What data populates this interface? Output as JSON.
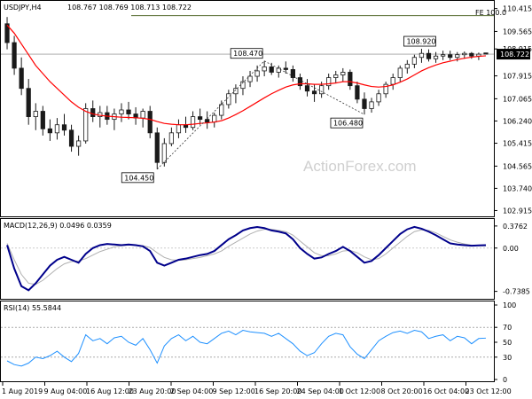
{
  "colors": {
    "candle": "#1a1a1a",
    "ma": "#ff0000",
    "macd": "#00008b",
    "signal": "#b0b0b0",
    "rsi": "#1e90ff",
    "level_line": "#a0a0a0",
    "frame": "#000000"
  },
  "header": {
    "symbol": "USDJPY,H4",
    "ohlc": "108.767 108.769 108.713 108.722"
  },
  "watermark": "ActionForex.com",
  "fib_label": "FE 100.0",
  "current_price_label": "108.722",
  "chart_data": [
    {
      "type": "candlestick",
      "series": [
        {
          "name": "",
          "values": [
            [
              109.85,
              110.1,
              108.9,
              109.15
            ],
            [
              109.15,
              109.4,
              107.95,
              108.2
            ],
            [
              108.2,
              108.6,
              107.2,
              107.45
            ],
            [
              107.45,
              107.8,
              106.1,
              106.4
            ],
            [
              106.4,
              106.9,
              105.9,
              106.6
            ],
            [
              106.6,
              106.8,
              105.7,
              105.95
            ],
            [
              105.95,
              106.3,
              105.5,
              105.8
            ],
            [
              105.8,
              106.35,
              105.55,
              106.1
            ],
            [
              106.1,
              106.5,
              105.7,
              105.9
            ],
            [
              105.9,
              106.1,
              105.1,
              105.3
            ],
            [
              105.3,
              105.7,
              104.95,
              105.5
            ],
            [
              105.5,
              106.9,
              105.4,
              106.7
            ],
            [
              106.7,
              107.0,
              106.2,
              106.4
            ],
            [
              106.4,
              106.8,
              106.0,
              106.55
            ],
            [
              106.55,
              106.8,
              106.1,
              106.3
            ],
            [
              106.3,
              106.7,
              105.9,
              106.5
            ],
            [
              106.5,
              106.9,
              106.2,
              106.65
            ],
            [
              106.65,
              106.95,
              106.3,
              106.5
            ],
            [
              106.5,
              106.75,
              106.1,
              106.35
            ],
            [
              106.35,
              106.7,
              106.0,
              106.6
            ],
            [
              106.6,
              106.8,
              105.6,
              105.8
            ],
            [
              105.8,
              106.0,
              104.45,
              104.7
            ],
            [
              104.7,
              105.6,
              104.55,
              105.4
            ],
            [
              105.4,
              106.0,
              105.3,
              105.8
            ],
            [
              105.8,
              106.3,
              105.6,
              106.1
            ],
            [
              106.1,
              106.4,
              105.8,
              106.0
            ],
            [
              106.0,
              106.6,
              105.9,
              106.4
            ],
            [
              106.4,
              106.7,
              106.1,
              106.3
            ],
            [
              106.3,
              106.6,
              105.95,
              106.2
            ],
            [
              106.2,
              106.55,
              106.0,
              106.45
            ],
            [
              106.45,
              107.0,
              106.3,
              106.85
            ],
            [
              106.85,
              107.4,
              106.7,
              107.25
            ],
            [
              107.25,
              107.6,
              106.9,
              107.45
            ],
            [
              107.45,
              107.9,
              107.2,
              107.7
            ],
            [
              107.7,
              108.1,
              107.5,
              107.9
            ],
            [
              107.9,
              108.3,
              107.7,
              108.1
            ],
            [
              108.1,
              108.47,
              107.9,
              108.25
            ],
            [
              108.25,
              108.4,
              107.95,
              108.05
            ],
            [
              108.05,
              108.3,
              107.85,
              108.2
            ],
            [
              108.2,
              108.45,
              108.0,
              108.15
            ],
            [
              108.15,
              108.3,
              107.7,
              107.85
            ],
            [
              107.85,
              108.0,
              107.4,
              107.55
            ],
            [
              107.55,
              107.8,
              107.15,
              107.35
            ],
            [
              107.35,
              107.6,
              106.95,
              107.25
            ],
            [
              107.25,
              107.7,
              107.1,
              107.55
            ],
            [
              107.55,
              108.0,
              107.4,
              107.85
            ],
            [
              107.85,
              108.1,
              107.65,
              107.95
            ],
            [
              107.95,
              108.2,
              107.7,
              108.05
            ],
            [
              108.05,
              108.15,
              107.4,
              107.55
            ],
            [
              107.55,
              107.7,
              106.9,
              107.05
            ],
            [
              107.05,
              107.3,
              106.48,
              106.7
            ],
            [
              106.7,
              107.1,
              106.55,
              106.95
            ],
            [
              106.95,
              107.4,
              106.8,
              107.25
            ],
            [
              107.25,
              107.7,
              107.1,
              107.6
            ],
            [
              107.6,
              108.0,
              107.4,
              107.85
            ],
            [
              107.85,
              108.3,
              107.7,
              108.2
            ],
            [
              108.2,
              108.5,
              108.0,
              108.35
            ],
            [
              108.35,
              108.7,
              108.2,
              108.6
            ],
            [
              108.6,
              108.92,
              108.4,
              108.75
            ],
            [
              108.75,
              108.9,
              108.45,
              108.55
            ],
            [
              108.55,
              108.8,
              108.4,
              108.65
            ],
            [
              108.65,
              108.85,
              108.5,
              108.7
            ],
            [
              108.7,
              108.85,
              108.5,
              108.6
            ],
            [
              108.6,
              108.8,
              108.45,
              108.7
            ],
            [
              108.7,
              108.82,
              108.55,
              108.75
            ],
            [
              108.75,
              108.8,
              108.55,
              108.65
            ],
            [
              108.65,
              108.78,
              108.5,
              108.72
            ],
            [
              108.767,
              108.769,
              108.713,
              108.722
            ]
          ]
        },
        {
          "name": "",
          "values": [
            109.8,
            109.5,
            109.1,
            108.7,
            108.3,
            108.0,
            107.7,
            107.45,
            107.2,
            106.95,
            106.75,
            106.6,
            106.5,
            106.45,
            106.42,
            106.4,
            106.38,
            106.37,
            106.36,
            106.34,
            106.3,
            106.22,
            106.15,
            106.12,
            106.1,
            106.1,
            106.12,
            106.15,
            106.17,
            106.2,
            106.25,
            106.35,
            106.48,
            106.62,
            106.78,
            106.94,
            107.1,
            107.25,
            107.38,
            107.5,
            107.58,
            107.62,
            107.62,
            107.6,
            107.6,
            107.62,
            107.65,
            107.7,
            107.7,
            107.65,
            107.58,
            107.52,
            107.5,
            107.52,
            107.58,
            107.68,
            107.8,
            107.95,
            108.1,
            108.22,
            108.32,
            108.4,
            108.46,
            108.52,
            108.57,
            108.61,
            108.64,
            108.66
          ]
        }
      ],
      "yticks": [
        "110.415",
        "109.565",
        "108.915",
        "107.915",
        "107.065",
        "106.240",
        "105.415",
        "104.565",
        "103.740",
        "102.915"
      ],
      "ylim": [
        102.7,
        110.6
      ],
      "annotations": [
        {
          "label": "108.470",
          "value": 108.47
        },
        {
          "label": "104.450",
          "value": 104.45
        },
        {
          "label": "106.480",
          "value": 106.48
        },
        {
          "label": "108.920",
          "value": 108.92
        }
      ],
      "horizontal_levels": [
        110.15,
        108.722
      ]
    },
    {
      "type": "line",
      "title": "MACD(12,26,9) 0.0496 0.0359",
      "series": [
        {
          "name": "",
          "values": [
            0.05,
            -0.35,
            -0.65,
            -0.72,
            -0.6,
            -0.45,
            -0.3,
            -0.2,
            -0.15,
            -0.2,
            -0.25,
            -0.1,
            0.0,
            0.05,
            0.07,
            0.06,
            0.05,
            0.06,
            0.05,
            0.03,
            -0.05,
            -0.25,
            -0.3,
            -0.25,
            -0.2,
            -0.18,
            -0.15,
            -0.12,
            -0.1,
            -0.05,
            0.05,
            0.15,
            0.22,
            0.3,
            0.34,
            0.36,
            0.34,
            0.3,
            0.28,
            0.25,
            0.15,
            0.0,
            -0.1,
            -0.18,
            -0.16,
            -0.1,
            -0.05,
            0.02,
            -0.05,
            -0.15,
            -0.25,
            -0.22,
            -0.12,
            0.0,
            0.12,
            0.24,
            0.32,
            0.36,
            0.33,
            0.28,
            0.22,
            0.15,
            0.08,
            0.06,
            0.05,
            0.04,
            0.045,
            0.05
          ]
        },
        {
          "name": "",
          "values": [
            0.08,
            -0.2,
            -0.45,
            -0.6,
            -0.62,
            -0.55,
            -0.45,
            -0.35,
            -0.27,
            -0.23,
            -0.22,
            -0.18,
            -0.12,
            -0.06,
            -0.02,
            0.02,
            0.04,
            0.05,
            0.05,
            0.04,
            0.01,
            -0.08,
            -0.16,
            -0.2,
            -0.21,
            -0.2,
            -0.18,
            -0.16,
            -0.13,
            -0.1,
            -0.05,
            0.03,
            0.1,
            0.17,
            0.24,
            0.29,
            0.32,
            0.32,
            0.3,
            0.28,
            0.22,
            0.12,
            0.02,
            -0.08,
            -0.13,
            -0.13,
            -0.1,
            -0.05,
            -0.04,
            -0.08,
            -0.15,
            -0.2,
            -0.18,
            -0.1,
            0.0,
            0.1,
            0.2,
            0.28,
            0.31,
            0.3,
            0.26,
            0.2,
            0.14,
            0.1,
            0.07,
            0.05,
            0.04,
            0.036
          ]
        }
      ],
      "yticks": [
        "0.3762",
        "0.00",
        "-0.7385"
      ],
      "ylim": [
        -0.82,
        0.45
      ]
    },
    {
      "type": "line",
      "title": "RSI(14) 55.5844",
      "series": [
        {
          "name": "",
          "values": [
            25,
            20,
            18,
            22,
            30,
            28,
            32,
            38,
            30,
            24,
            35,
            60,
            52,
            55,
            48,
            56,
            58,
            50,
            46,
            55,
            40,
            22,
            45,
            55,
            60,
            52,
            58,
            50,
            48,
            55,
            62,
            65,
            60,
            66,
            64,
            63,
            62,
            58,
            62,
            55,
            48,
            38,
            32,
            36,
            48,
            58,
            62,
            60,
            44,
            34,
            28,
            40,
            52,
            58,
            63,
            65,
            62,
            66,
            64,
            55,
            58,
            60,
            52,
            58,
            56,
            48,
            55,
            55.58
          ]
        }
      ],
      "yticks": [
        "100",
        "70",
        "50",
        "30",
        "0"
      ],
      "ylim": [
        0,
        100
      ],
      "levels": [
        70,
        30
      ]
    }
  ],
  "xaxis": {
    "labels": [
      "1 Aug 2019",
      "9 Aug 04:00",
      "16 Aug 12:00",
      "23 Aug 20:00",
      "2 Sep 04:00",
      "9 Sep 12:00",
      "16 Sep 20:00",
      "24 Sep 04:00",
      "1 Oct 12:00",
      "8 Oct 20:00",
      "16 Oct 04:00",
      "23 Oct 12:00"
    ]
  }
}
